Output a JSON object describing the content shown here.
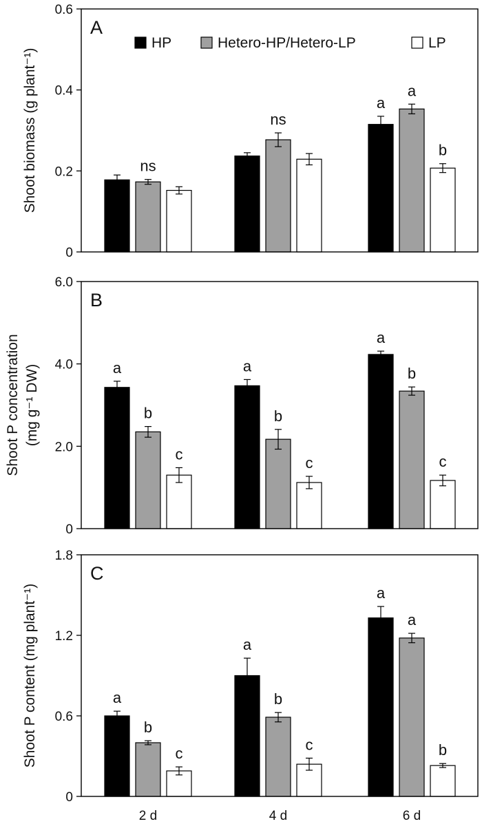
{
  "chart_data": [
    {
      "type": "bar",
      "panel_label": "A",
      "ylabel": "Shoot biomass (g plant⁻¹)",
      "ylim": [
        0,
        0.6
      ],
      "yticks": [
        0,
        0.2,
        0.4,
        0.6
      ],
      "ytick_labels": [
        "0",
        "0.2",
        "0.4",
        "0.6"
      ],
      "categories": [
        "2 d",
        "4 d",
        "6 d"
      ],
      "legend": {
        "placement": "top"
      },
      "series": [
        {
          "name": "HP",
          "color": "#000000",
          "values": [
            0.178,
            0.237,
            0.315
          ],
          "errors": [
            0.012,
            0.008,
            0.02
          ]
        },
        {
          "name": "Hetero-HP/Hetero-LP",
          "color": "#a0a0a0",
          "values": [
            0.173,
            0.277,
            0.353
          ],
          "errors": [
            0.006,
            0.017,
            0.012
          ]
        },
        {
          "name": "LP",
          "color": "#ffffff",
          "values": [
            0.152,
            0.229,
            0.207
          ],
          "errors": [
            0.009,
            0.014,
            0.011
          ]
        }
      ],
      "annotations": [
        {
          "category": 0,
          "series": 1,
          "text": "ns"
        },
        {
          "category": 1,
          "series": 1,
          "text": "ns"
        },
        {
          "category": 2,
          "series": 0,
          "text": "a"
        },
        {
          "category": 2,
          "series": 1,
          "text": "a"
        },
        {
          "category": 2,
          "series": 2,
          "text": "b"
        }
      ]
    },
    {
      "type": "bar",
      "panel_label": "B",
      "ylabel": [
        "Shoot P concentration",
        "(mg g⁻¹ DW)"
      ],
      "ylim": [
        0,
        6.0
      ],
      "yticks": [
        0,
        2,
        4,
        6
      ],
      "ytick_labels": [
        "0",
        "2.0",
        "4.0",
        "6.0"
      ],
      "categories": [
        "2 d",
        "4 d",
        "6 d"
      ],
      "series": [
        {
          "name": "HP",
          "color": "#000000",
          "values": [
            3.43,
            3.47,
            4.23
          ],
          "errors": [
            0.15,
            0.15,
            0.08
          ]
        },
        {
          "name": "Hetero-HP/Hetero-LP",
          "color": "#a0a0a0",
          "values": [
            2.35,
            2.17,
            3.34
          ],
          "errors": [
            0.13,
            0.24,
            0.1
          ]
        },
        {
          "name": "LP",
          "color": "#ffffff",
          "values": [
            1.3,
            1.12,
            1.17
          ],
          "errors": [
            0.18,
            0.15,
            0.13
          ]
        }
      ],
      "annotations": [
        {
          "category": 0,
          "series": 0,
          "text": "a"
        },
        {
          "category": 0,
          "series": 1,
          "text": "b"
        },
        {
          "category": 0,
          "series": 2,
          "text": "c"
        },
        {
          "category": 1,
          "series": 0,
          "text": "a"
        },
        {
          "category": 1,
          "series": 1,
          "text": "b"
        },
        {
          "category": 1,
          "series": 2,
          "text": "c"
        },
        {
          "category": 2,
          "series": 0,
          "text": "a"
        },
        {
          "category": 2,
          "series": 1,
          "text": "b"
        },
        {
          "category": 2,
          "series": 2,
          "text": "c"
        }
      ]
    },
    {
      "type": "bar",
      "panel_label": "C",
      "ylabel": "Shoot P content (mg plant⁻¹)",
      "ylim": [
        0,
        1.8
      ],
      "yticks": [
        0,
        0.6,
        1.2,
        1.8
      ],
      "ytick_labels": [
        "0",
        "0.6",
        "1.2",
        "1.8"
      ],
      "categories": [
        "2 d",
        "4 d",
        "6 d"
      ],
      "series": [
        {
          "name": "HP",
          "color": "#000000",
          "values": [
            0.6,
            0.9,
            1.33
          ],
          "errors": [
            0.035,
            0.13,
            0.085
          ]
        },
        {
          "name": "Hetero-HP/Hetero-LP",
          "color": "#a0a0a0",
          "values": [
            0.4,
            0.59,
            1.18
          ],
          "errors": [
            0.015,
            0.035,
            0.035
          ]
        },
        {
          "name": "LP",
          "color": "#ffffff",
          "values": [
            0.19,
            0.24,
            0.23
          ],
          "errors": [
            0.03,
            0.045,
            0.015
          ]
        }
      ],
      "annotations": [
        {
          "category": 0,
          "series": 0,
          "text": "a"
        },
        {
          "category": 0,
          "series": 1,
          "text": "b"
        },
        {
          "category": 0,
          "series": 2,
          "text": "c"
        },
        {
          "category": 1,
          "series": 0,
          "text": "a"
        },
        {
          "category": 1,
          "series": 1,
          "text": "b"
        },
        {
          "category": 1,
          "series": 2,
          "text": "c"
        },
        {
          "category": 2,
          "series": 0,
          "text": "a"
        },
        {
          "category": 2,
          "series": 1,
          "text": "a"
        },
        {
          "category": 2,
          "series": 2,
          "text": "b"
        }
      ]
    }
  ]
}
